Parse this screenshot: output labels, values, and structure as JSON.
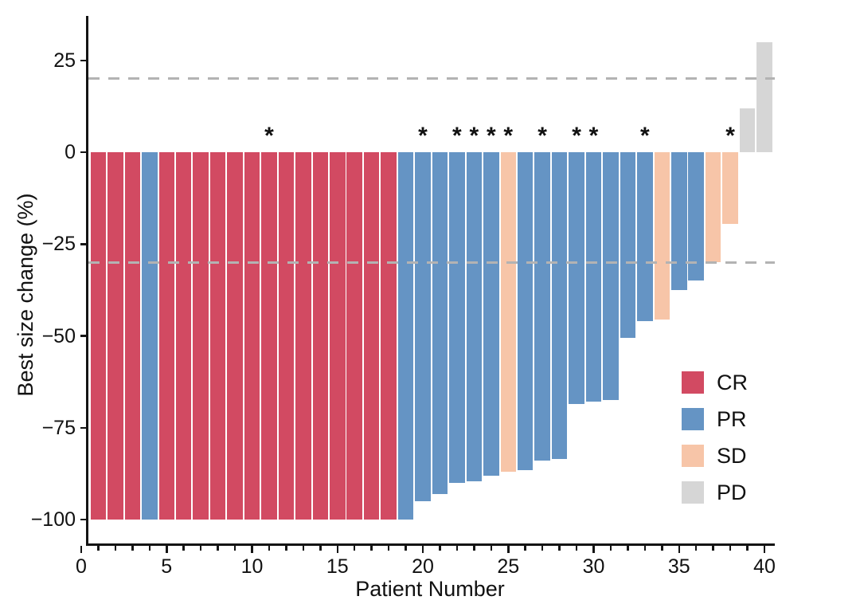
{
  "figure": {
    "y_axis_label": "Best size change (%)",
    "x_axis_label": "Patient Number"
  },
  "legend": {
    "items": [
      {
        "label": "CR",
        "color": "#d24a62"
      },
      {
        "label": "PR",
        "color": "#6594c4"
      },
      {
        "label": "SD",
        "color": "#f7c5a8"
      },
      {
        "label": "PD",
        "color": "#d6d6d6"
      }
    ]
  },
  "chart_data": {
    "type": "bar",
    "subtype": "waterfall",
    "title": "",
    "xlabel": "Patient Number",
    "ylabel": "Best size change (%)",
    "x_range": [
      0,
      40
    ],
    "x_ticks_major": [
      0,
      5,
      10,
      15,
      20,
      25,
      30,
      35,
      40
    ],
    "x_minor_tick_step": 1,
    "y_ticks": [
      25,
      0,
      -25,
      -50,
      -75,
      -100
    ],
    "y_tick_labels": [
      "25",
      "0",
      "−25",
      "−50",
      "−75",
      "−100"
    ],
    "ylim": [
      -107,
      37
    ],
    "grid": false,
    "legend_position": "right-lower",
    "reference_lines": [
      20,
      -30
    ],
    "reference_line_style": "dashed",
    "reference_line_color": "#b3b3b3",
    "colors": {
      "CR": "#d24a62",
      "PR": "#6594c4",
      "SD": "#f7c5a8",
      "PD": "#d6d6d6"
    },
    "annotation_glyph": "*",
    "bars": [
      {
        "patient": 1,
        "value": -100,
        "response": "CR",
        "star": false
      },
      {
        "patient": 2,
        "value": -100,
        "response": "CR",
        "star": false
      },
      {
        "patient": 3,
        "value": -100,
        "response": "CR",
        "star": false
      },
      {
        "patient": 4,
        "value": -100,
        "response": "PR",
        "star": false
      },
      {
        "patient": 5,
        "value": -100,
        "response": "CR",
        "star": false
      },
      {
        "patient": 6,
        "value": -100,
        "response": "CR",
        "star": false
      },
      {
        "patient": 7,
        "value": -100,
        "response": "CR",
        "star": false
      },
      {
        "patient": 8,
        "value": -100,
        "response": "CR",
        "star": false
      },
      {
        "patient": 9,
        "value": -100,
        "response": "CR",
        "star": false
      },
      {
        "patient": 10,
        "value": -100,
        "response": "CR",
        "star": false
      },
      {
        "patient": 11,
        "value": -100,
        "response": "CR",
        "star": true
      },
      {
        "patient": 12,
        "value": -100,
        "response": "CR",
        "star": false
      },
      {
        "patient": 13,
        "value": -100,
        "response": "CR",
        "star": false
      },
      {
        "patient": 14,
        "value": -100,
        "response": "CR",
        "star": false
      },
      {
        "patient": 15,
        "value": -100,
        "response": "CR",
        "star": false
      },
      {
        "patient": 16,
        "value": -100,
        "response": "CR",
        "star": false
      },
      {
        "patient": 17,
        "value": -100,
        "response": "CR",
        "star": false
      },
      {
        "patient": 18,
        "value": -100,
        "response": "CR",
        "star": false
      },
      {
        "patient": 19,
        "value": -100,
        "response": "PR",
        "star": false
      },
      {
        "patient": 20,
        "value": -95,
        "response": "PR",
        "star": true
      },
      {
        "patient": 21,
        "value": -93,
        "response": "PR",
        "star": false
      },
      {
        "patient": 22,
        "value": -90,
        "response": "PR",
        "star": true
      },
      {
        "patient": 23,
        "value": -89.5,
        "response": "PR",
        "star": true
      },
      {
        "patient": 24,
        "value": -88,
        "response": "PR",
        "star": true
      },
      {
        "patient": 25,
        "value": -87,
        "response": "SD",
        "star": true
      },
      {
        "patient": 26,
        "value": -86.5,
        "response": "PR",
        "star": false
      },
      {
        "patient": 27,
        "value": -84,
        "response": "PR",
        "star": true
      },
      {
        "patient": 28,
        "value": -83.5,
        "response": "PR",
        "star": false
      },
      {
        "patient": 29,
        "value": -68.5,
        "response": "PR",
        "star": true
      },
      {
        "patient": 30,
        "value": -68,
        "response": "PR",
        "star": true
      },
      {
        "patient": 31,
        "value": -67.5,
        "response": "PR",
        "star": false
      },
      {
        "patient": 32,
        "value": -50.5,
        "response": "PR",
        "star": false
      },
      {
        "patient": 33,
        "value": -46,
        "response": "PR",
        "star": true
      },
      {
        "patient": 34,
        "value": -45.5,
        "response": "SD",
        "star": false
      },
      {
        "patient": 35,
        "value": -37.5,
        "response": "PR",
        "star": false
      },
      {
        "patient": 36,
        "value": -35,
        "response": "PR",
        "star": false
      },
      {
        "patient": 37,
        "value": -30,
        "response": "SD",
        "star": false
      },
      {
        "patient": 38,
        "value": -19.5,
        "response": "SD",
        "star": true
      },
      {
        "patient": 39,
        "value": 12,
        "response": "PD",
        "star": false
      },
      {
        "patient": 40,
        "value": 30,
        "response": "PD",
        "star": false
      }
    ]
  }
}
